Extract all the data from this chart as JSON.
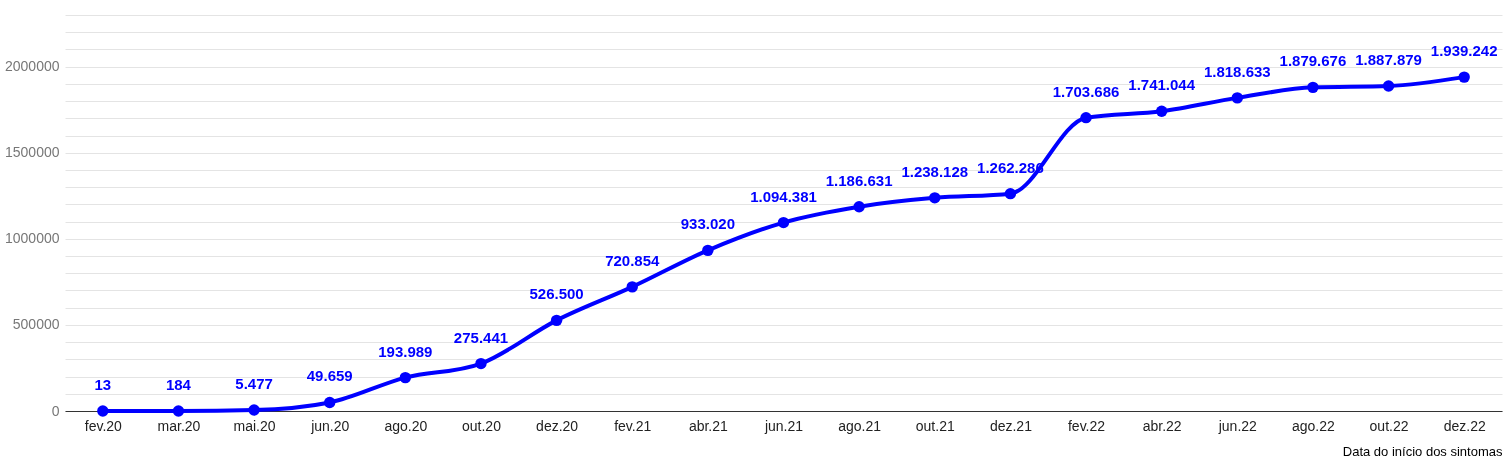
{
  "chart_data": {
    "type": "line",
    "xlabel": "Data do início dos sintomas",
    "categories": [
      "fev.20",
      "mar.20",
      "mai.20",
      "jun.20",
      "ago.20",
      "out.20",
      "dez.20",
      "fev.21",
      "abr.21",
      "jun.21",
      "ago.21",
      "out.21",
      "dez.21",
      "fev.22",
      "abr.22",
      "jun.22",
      "ago.22",
      "out.22",
      "dez.22"
    ],
    "series": [
      {
        "color": "#0000ff",
        "values": [
          13,
          184,
          5477,
          49659,
          193989,
          275441,
          526500,
          720854,
          933020,
          1094381,
          1186631,
          1238128,
          1262286,
          1703686,
          1741044,
          1818633,
          1879676,
          1887879,
          1939242
        ],
        "value_labels": [
          "13",
          "184",
          "5.477",
          "49.659",
          "193.989",
          "275.441",
          "526.500",
          "720.854",
          "933.020",
          "1.094.381",
          "1.186.631",
          "1.238.128",
          "1.262.286",
          "1.703.686",
          "1.741.044",
          "1.818.633",
          "1.879.676",
          "1.887.879",
          "1.939.242"
        ]
      }
    ],
    "ylim": [
      0,
      2300000
    ],
    "yticks": [
      0,
      {
        "value": 100000,
        "label": null
      },
      {
        "value": 200000,
        "label": null
      },
      {
        "value": 300000,
        "label": null
      },
      {
        "value": 400000,
        "label": null
      },
      500000,
      {
        "value": 600000,
        "label": null
      },
      {
        "value": 700000,
        "label": null
      },
      {
        "value": 800000,
        "label": null
      },
      {
        "value": 900000,
        "label": null
      },
      1000000,
      {
        "value": 1100000,
        "label": null
      },
      {
        "value": 1200000,
        "label": null
      },
      {
        "value": 1300000,
        "label": null
      },
      {
        "value": 1400000,
        "label": null
      },
      1500000,
      {
        "value": 1600000,
        "label": null
      },
      {
        "value": 1700000,
        "label": null
      },
      {
        "value": 1800000,
        "label": null
      },
      {
        "value": 1900000,
        "label": null
      },
      2000000,
      {
        "value": 2100000,
        "label": null
      },
      {
        "value": 2200000,
        "label": null
      },
      {
        "value": 2300000,
        "label": null
      }
    ],
    "grid": true,
    "marker": "circle",
    "line_style": "solid"
  }
}
